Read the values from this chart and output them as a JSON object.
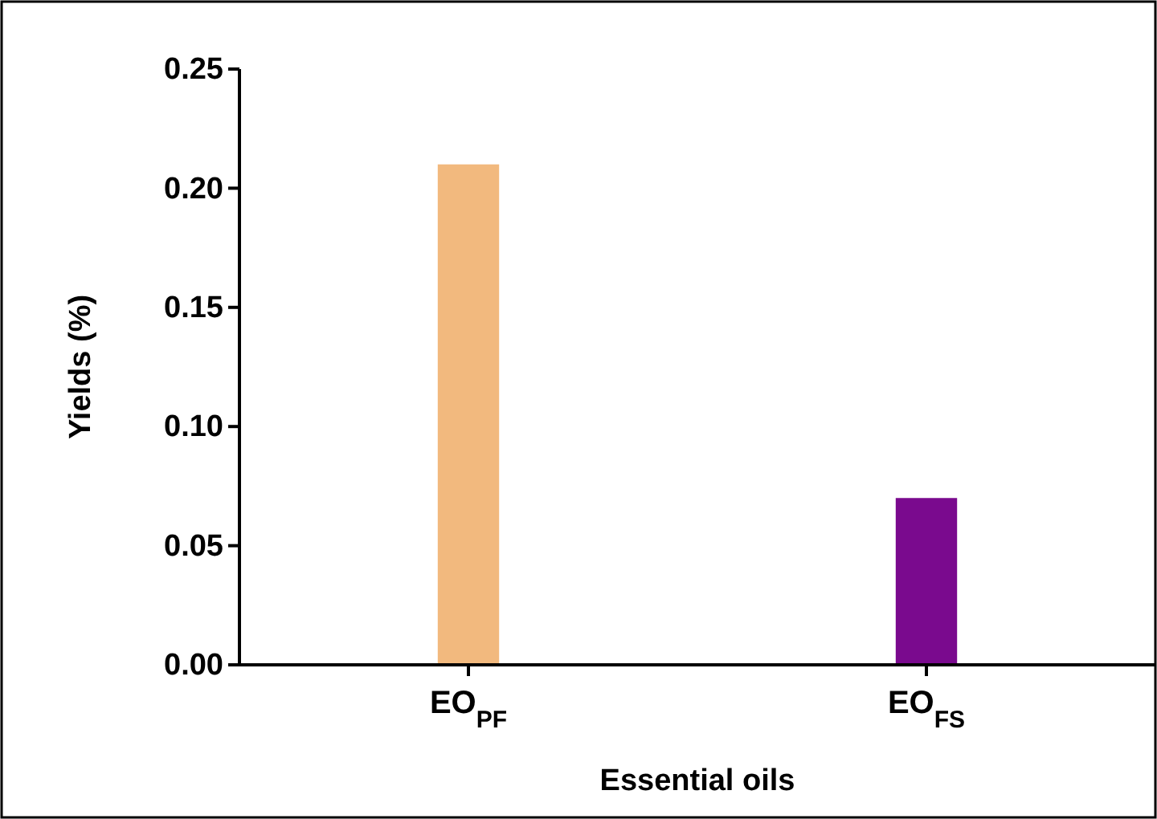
{
  "chart_data": {
    "type": "bar",
    "xlabel": "Essential oils",
    "ylabel": "Yields (%)",
    "categories": [
      "EO$_{PF}$",
      "EO$_{FS}$"
    ],
    "values": [
      0.21,
      0.07
    ],
    "colors": [
      "#f2b97e",
      "#7a0a8e"
    ],
    "ylim": [
      0,
      0.25
    ],
    "yticks": [
      {
        "value": 0,
        "label": "0.00"
      },
      {
        "value": 0.05,
        "label": "0.05"
      },
      {
        "value": 0.1,
        "label": "0.10"
      },
      {
        "value": 0.15,
        "label": "0.15"
      },
      {
        "value": 0.2,
        "label": "0.20"
      },
      {
        "value": 0.25,
        "label": "0.25"
      }
    ],
    "grid": false
  }
}
